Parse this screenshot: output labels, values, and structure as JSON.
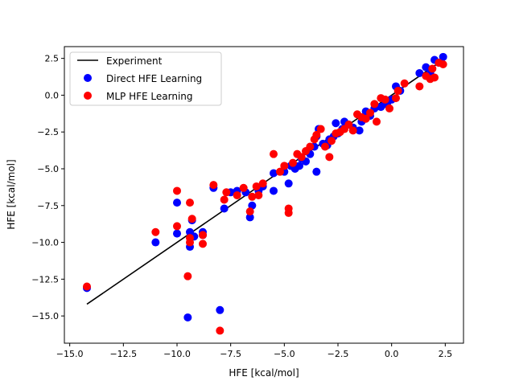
{
  "chart_data": {
    "type": "scatter",
    "xlabel": "HFE [kcal/mol]",
    "ylabel": "HFE [kcal/mol]",
    "xlim": [
      -15.25,
      3.35
    ],
    "ylim": [
      -16.85,
      3.3
    ],
    "xticks": [
      -15.0,
      -12.5,
      -10.0,
      -7.5,
      -5.0,
      -2.5,
      0.0,
      2.5
    ],
    "yticks": [
      2.5,
      0.0,
      -2.5,
      -5.0,
      -7.5,
      -10.0,
      -12.5,
      -15.0
    ],
    "xtick_labels": [
      "−15.0",
      "−12.5",
      "−10.0",
      "−7.5",
      "−5.0",
      "−2.5",
      "0.0",
      "2.5"
    ],
    "ytick_labels": [
      "2.5",
      "0.0",
      "−2.5",
      "−5.0",
      "−7.5",
      "−10.0",
      "−12.5",
      "−15.0"
    ],
    "grid": false,
    "legend_position": "upper-left",
    "line": {
      "name": "Experiment",
      "color": "#000000",
      "x": [
        -14.2,
        2.45
      ],
      "y": [
        -14.2,
        2.45
      ]
    },
    "series": [
      {
        "name": "Direct HFE Learning",
        "color": "#0000ff",
        "points": [
          [
            -14.2,
            -13.1
          ],
          [
            -11.0,
            -10.0
          ],
          [
            -10.0,
            -9.4
          ],
          [
            -10.0,
            -7.3
          ],
          [
            -9.5,
            -15.1
          ],
          [
            -9.4,
            -10.3
          ],
          [
            -9.4,
            -9.3
          ],
          [
            -9.3,
            -8.5
          ],
          [
            -9.2,
            -9.6
          ],
          [
            -8.8,
            -9.3
          ],
          [
            -8.8,
            -9.5
          ],
          [
            -8.3,
            -6.3
          ],
          [
            -8.0,
            -14.6
          ],
          [
            -7.8,
            -7.7
          ],
          [
            -7.5,
            -6.6
          ],
          [
            -7.2,
            -6.5
          ],
          [
            -6.8,
            -6.6
          ],
          [
            -6.6,
            -8.3
          ],
          [
            -6.5,
            -7.5
          ],
          [
            -6.2,
            -6.5
          ],
          [
            -6.0,
            -6.2
          ],
          [
            -5.5,
            -5.3
          ],
          [
            -5.5,
            -6.5
          ],
          [
            -5.0,
            -5.2
          ],
          [
            -4.8,
            -6.0
          ],
          [
            -4.7,
            -4.8
          ],
          [
            -4.5,
            -5.0
          ],
          [
            -4.3,
            -4.8
          ],
          [
            -4.2,
            -4.3
          ],
          [
            -4.0,
            -4.5
          ],
          [
            -3.8,
            -4.0
          ],
          [
            -3.6,
            -3.5
          ],
          [
            -3.5,
            -5.2
          ],
          [
            -3.5,
            -2.8
          ],
          [
            -3.4,
            -2.3
          ],
          [
            -3.2,
            -3.3
          ],
          [
            -3.0,
            -3.4
          ],
          [
            -2.9,
            -3.0
          ],
          [
            -2.7,
            -2.8
          ],
          [
            -2.6,
            -1.9
          ],
          [
            -2.5,
            -2.6
          ],
          [
            -2.3,
            -2.3
          ],
          [
            -2.2,
            -1.8
          ],
          [
            -2.0,
            -2.0
          ],
          [
            -1.8,
            -2.2
          ],
          [
            -1.5,
            -2.4
          ],
          [
            -1.4,
            -1.8
          ],
          [
            -1.2,
            -1.1
          ],
          [
            -1.0,
            -1.4
          ],
          [
            -0.8,
            -0.9
          ],
          [
            -0.5,
            -0.8
          ],
          [
            -0.3,
            -0.6
          ],
          [
            -0.2,
            -0.5
          ],
          [
            0.0,
            -0.3
          ],
          [
            0.2,
            0.6
          ],
          [
            0.4,
            0.3
          ],
          [
            1.3,
            1.5
          ],
          [
            1.6,
            1.9
          ],
          [
            1.8,
            1.5
          ],
          [
            2.0,
            2.4
          ],
          [
            2.2,
            2.2
          ],
          [
            2.4,
            2.6
          ]
        ]
      },
      {
        "name": "MLP HFE Learning",
        "color": "#ff0000",
        "points": [
          [
            -14.2,
            -13.0
          ],
          [
            -11.0,
            -9.3
          ],
          [
            -10.0,
            -6.5
          ],
          [
            -10.0,
            -8.9
          ],
          [
            -9.5,
            -12.3
          ],
          [
            -9.4,
            -7.3
          ],
          [
            -9.3,
            -8.4
          ],
          [
            -9.4,
            -10.0
          ],
          [
            -9.4,
            -9.7
          ],
          [
            -8.8,
            -9.5
          ],
          [
            -8.8,
            -10.1
          ],
          [
            -8.3,
            -6.1
          ],
          [
            -8.0,
            -16.0
          ],
          [
            -7.8,
            -7.1
          ],
          [
            -7.7,
            -6.6
          ],
          [
            -7.2,
            -6.8
          ],
          [
            -6.9,
            -6.3
          ],
          [
            -6.6,
            -7.9
          ],
          [
            -6.5,
            -6.9
          ],
          [
            -6.3,
            -6.2
          ],
          [
            -6.2,
            -6.8
          ],
          [
            -6.0,
            -6.0
          ],
          [
            -5.5,
            -4.0
          ],
          [
            -5.2,
            -5.2
          ],
          [
            -5.0,
            -4.8
          ],
          [
            -4.8,
            -7.7
          ],
          [
            -4.8,
            -8.0
          ],
          [
            -4.6,
            -4.6
          ],
          [
            -4.4,
            -4.0
          ],
          [
            -4.2,
            -4.2
          ],
          [
            -4.0,
            -3.8
          ],
          [
            -3.8,
            -3.5
          ],
          [
            -3.6,
            -3.0
          ],
          [
            -3.5,
            -2.7
          ],
          [
            -3.3,
            -2.3
          ],
          [
            -3.1,
            -3.5
          ],
          [
            -2.9,
            -4.2
          ],
          [
            -2.8,
            -3.1
          ],
          [
            -2.6,
            -2.6
          ],
          [
            -2.4,
            -2.5
          ],
          [
            -2.2,
            -2.3
          ],
          [
            -2.0,
            -2.0
          ],
          [
            -1.8,
            -2.4
          ],
          [
            -1.6,
            -1.3
          ],
          [
            -1.4,
            -1.5
          ],
          [
            -1.2,
            -1.6
          ],
          [
            -1.0,
            -1.2
          ],
          [
            -0.8,
            -0.6
          ],
          [
            -0.7,
            -1.8
          ],
          [
            -0.5,
            -0.2
          ],
          [
            -0.3,
            -0.3
          ],
          [
            -0.1,
            -0.9
          ],
          [
            0.2,
            -0.2
          ],
          [
            0.3,
            0.3
          ],
          [
            0.6,
            0.8
          ],
          [
            1.3,
            0.6
          ],
          [
            1.6,
            1.3
          ],
          [
            1.8,
            1.1
          ],
          [
            1.9,
            1.8
          ],
          [
            2.0,
            1.2
          ],
          [
            2.2,
            2.2
          ],
          [
            2.4,
            2.1
          ]
        ]
      }
    ]
  }
}
